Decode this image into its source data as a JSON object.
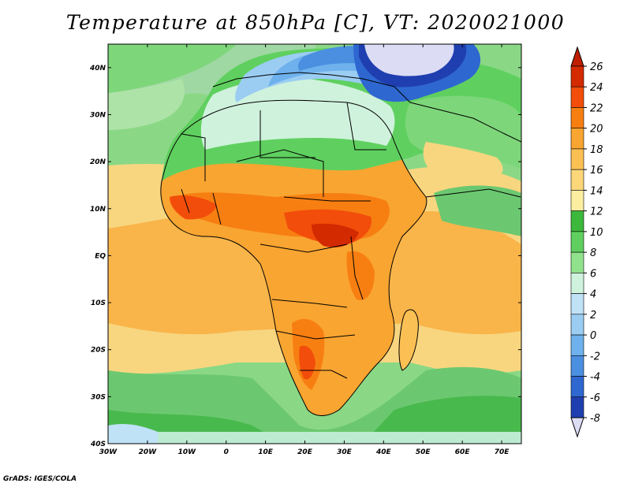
{
  "title": "Temperature at 850hPa [C], VT: 2020021000",
  "credit": "GrADS: IGES/COLA",
  "map": {
    "region": "Africa",
    "projection": "latlon",
    "lon_range": [
      -30,
      75
    ],
    "lat_range": [
      -40,
      45
    ],
    "variable": "Temperature at 850hPa",
    "units": "C",
    "lon_ticks": [
      "30W",
      "20W",
      "10W",
      "0",
      "10E",
      "20E",
      "30E",
      "40E",
      "50E",
      "60E",
      "70E"
    ],
    "lat_ticks": [
      "40N",
      "30N",
      "20N",
      "10N",
      "EQ",
      "10S",
      "20S",
      "30S",
      "40S"
    ]
  },
  "colorbar": {
    "labels": [
      "26",
      "24",
      "22",
      "20",
      "18",
      "16",
      "14",
      "12",
      "10",
      "8",
      "6",
      "4",
      "2",
      "0",
      "-2",
      "-4",
      "-6",
      "-8"
    ],
    "colors": [
      "#d42a00",
      "#f24d0a",
      "#f77f12",
      "#f9a531",
      "#fbc054",
      "#fbd77a",
      "#fbeea0",
      "#3cb93c",
      "#5fd05f",
      "#91e28c",
      "#cff2dc",
      "#bfe2f7",
      "#9bcdf3",
      "#6eb1ec",
      "#4b8fe0",
      "#2e67d0",
      "#1f3fb0",
      "#0f1b8a"
    ],
    "top_arrow_color": "#c01e00",
    "bottom_arrow_color": "#dcdcf5"
  },
  "palette": {
    "ocean_green": "#44c04a",
    "ocean_light_green": "#7ed67a",
    "cold_lavender": "#e0e0f8",
    "cold_navy": "#20208a"
  }
}
